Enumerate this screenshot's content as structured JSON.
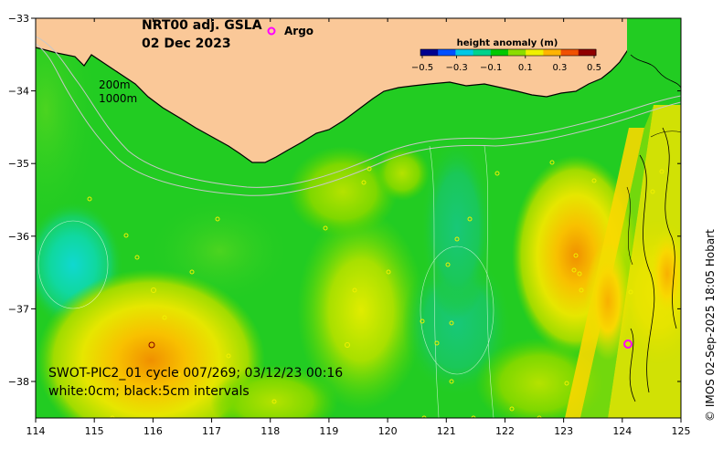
{
  "map": {
    "title_line1": "NRT00 adj. GSLA",
    "title_line2": "02 Dec 2023",
    "legend_argo_label": "Argo",
    "depth_label_200": "200m",
    "depth_label_1000": "1000m",
    "swot_line": "SWOT-PIC2_01 cycle 007/269; 03/12/23 00:16",
    "contour_line": "white:0cm; black:5cm intervals",
    "credit": "© IMOS 02-Sep-2025 18:05 Hobart"
  },
  "colorbar": {
    "title": "height anomaly (m)",
    "tick_labels": [
      "−0.5",
      "−0.3",
      "−0.1",
      "0.1",
      "0.3",
      "0.5"
    ],
    "colors": [
      "#00008f",
      "#0050ff",
      "#00c8e6",
      "#00d28c",
      "#00c800",
      "#8cdc00",
      "#f0f000",
      "#ffb400",
      "#f05000",
      "#900000"
    ]
  },
  "axes": {
    "x_ticks": [
      "114",
      "115",
      "116",
      "117",
      "118",
      "119",
      "120",
      "121",
      "122",
      "123",
      "124",
      "125"
    ],
    "y_ticks": [
      "−33",
      "−34",
      "−35",
      "−36",
      "−37",
      "−38"
    ]
  },
  "colors": {
    "land": "#fac898",
    "ocean_base": "#22cc22",
    "argo": "#ff00ff"
  }
}
